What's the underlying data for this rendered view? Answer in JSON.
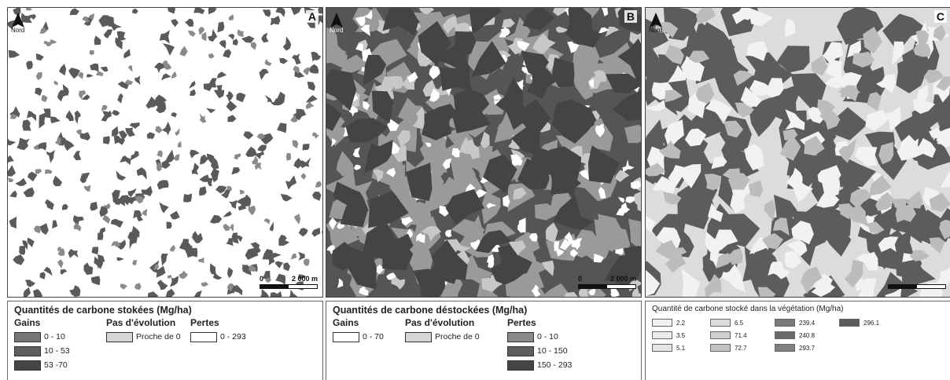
{
  "north_label": "Nord",
  "panels": [
    {
      "letter": "A",
      "scale": {
        "zero": "0",
        "max": "2 000 m"
      },
      "map": {
        "bg": "#ffffff",
        "patches": [
          {
            "color": "#5a5a5a",
            "count": 260,
            "min": 2,
            "max": 9
          },
          {
            "color": "#8a8a8a",
            "count": 90,
            "min": 2,
            "max": 6
          }
        ]
      }
    },
    {
      "letter": "B",
      "scale": {
        "zero": "0",
        "max": "2 000 m"
      },
      "map": {
        "bg": "#555555",
        "patches": [
          {
            "color": "#9a9a9a",
            "count": 140,
            "min": 8,
            "max": 26
          },
          {
            "color": "#c8c8c8",
            "count": 80,
            "min": 4,
            "max": 14
          },
          {
            "color": "#ffffff",
            "count": 120,
            "min": 2,
            "max": 9
          },
          {
            "color": "#444444",
            "count": 60,
            "min": 10,
            "max": 30
          }
        ]
      }
    },
    {
      "letter": "C",
      "scale": {
        "zero": "",
        "max": ""
      },
      "map": {
        "bg": "#dcdcdc",
        "patches": [
          {
            "color": "#5c5c5c",
            "count": 110,
            "min": 10,
            "max": 32
          },
          {
            "color": "#f2f2f2",
            "count": 90,
            "min": 5,
            "max": 18
          },
          {
            "color": "#bcbcbc",
            "count": 60,
            "min": 6,
            "max": 16
          }
        ]
      }
    }
  ],
  "legend_a": {
    "title": "Quantités de carbone stokées (Mg/ha)",
    "gains": {
      "title": "Gains",
      "items": [
        {
          "label": "0 - 10",
          "color": "#777777"
        },
        {
          "label": "10 - 53",
          "color": "#5e5e5e"
        },
        {
          "label": "53 -70",
          "color": "#454545"
        }
      ]
    },
    "pas": {
      "title": "Pas d'évolution",
      "items": [
        {
          "label": "Proche de 0",
          "color": "#d6d6d6"
        }
      ]
    },
    "pertes": {
      "title": "Pertes",
      "items": [
        {
          "label": "0 - 293",
          "color": "#ffffff"
        }
      ]
    }
  },
  "legend_b": {
    "title": "Quantités de carbone déstockées (Mg/ha)",
    "gains": {
      "title": "Gains",
      "items": [
        {
          "label": "0 - 70",
          "color": "#ffffff"
        }
      ]
    },
    "pas": {
      "title": "Pas d'évolution",
      "items": [
        {
          "label": "Proche de 0",
          "color": "#d6d6d6"
        }
      ]
    },
    "pertes": {
      "title": "Pertes",
      "items": [
        {
          "label": "0 - 10",
          "color": "#8a8a8a"
        },
        {
          "label": "10 - 150",
          "color": "#5e5e5e"
        },
        {
          "label": "150 - 293",
          "color": "#454545"
        }
      ]
    }
  },
  "legend_c": {
    "title": "Quantité de carbone stocké dans la végétation (Mg/ha)",
    "columns": [
      [
        {
          "label": "2.2",
          "color": "#f1f1f1"
        },
        {
          "label": "3.5",
          "color": "#ececec"
        },
        {
          "label": "5.1",
          "color": "#e4e4e4"
        }
      ],
      [
        {
          "label": "6.5",
          "color": "#dcdcdc"
        },
        {
          "label": "71.4",
          "color": "#cfcfcf"
        },
        {
          "label": "72.7",
          "color": "#c3c3c3"
        }
      ],
      [
        {
          "label": "239.4",
          "color": "#7a7a7a"
        },
        {
          "label": "240.8",
          "color": "#6a6a6a"
        },
        {
          "label": "293.7",
          "color": "#808080"
        }
      ],
      [
        {
          "label": "296.1",
          "color": "#5c5c5c"
        }
      ]
    ]
  }
}
